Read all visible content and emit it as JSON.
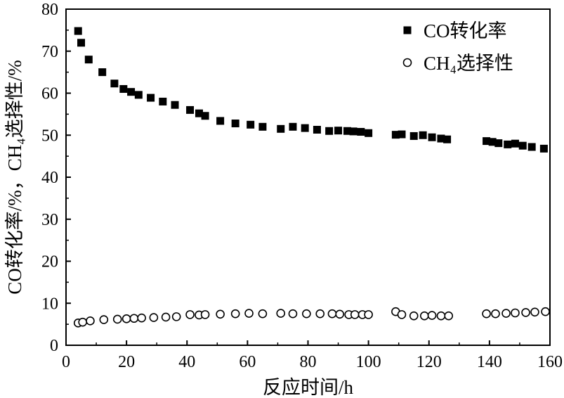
{
  "chart_data": {
    "type": "scatter",
    "xlabel": "反应时间/h",
    "ylabel": "CO转化率/%，CH₄选择性/%",
    "xlim": [
      0,
      160
    ],
    "ylim": [
      0,
      80
    ],
    "xticks": [
      0,
      20,
      40,
      60,
      80,
      100,
      120,
      140,
      160
    ],
    "yticks": [
      0,
      10,
      20,
      30,
      40,
      50,
      60,
      70,
      80
    ],
    "grid": false,
    "legend_position": "top-right",
    "series": [
      {
        "name": "CO转化率",
        "marker": "filled-square",
        "color": "#000000",
        "points": [
          [
            4,
            74.8
          ],
          [
            5,
            72
          ],
          [
            7.5,
            68
          ],
          [
            12,
            65
          ],
          [
            16,
            62.3
          ],
          [
            19,
            61
          ],
          [
            21.5,
            60.3
          ],
          [
            24,
            59.6
          ],
          [
            28,
            58.9
          ],
          [
            32,
            58
          ],
          [
            36,
            57.2
          ],
          [
            41,
            56
          ],
          [
            44,
            55.2
          ],
          [
            46,
            54.6
          ],
          [
            51,
            53.4
          ],
          [
            56,
            52.8
          ],
          [
            61,
            52.5
          ],
          [
            65,
            52
          ],
          [
            71,
            51.5
          ],
          [
            75,
            52
          ],
          [
            79,
            51.7
          ],
          [
            83,
            51.3
          ],
          [
            87,
            51
          ],
          [
            90,
            51.1
          ],
          [
            93,
            51
          ],
          [
            95,
            50.9
          ],
          [
            97.5,
            50.8
          ],
          [
            100,
            50.5
          ],
          [
            109,
            50.1
          ],
          [
            111,
            50.2
          ],
          [
            115,
            49.8
          ],
          [
            118,
            50
          ],
          [
            121,
            49.5
          ],
          [
            124,
            49.2
          ],
          [
            126,
            49
          ],
          [
            139,
            48.6
          ],
          [
            141,
            48.4
          ],
          [
            143,
            48.1
          ],
          [
            146,
            47.8
          ],
          [
            148.5,
            48
          ],
          [
            151,
            47.5
          ],
          [
            154,
            47.2
          ],
          [
            158,
            46.8
          ]
        ]
      },
      {
        "name": "CH₄选择性",
        "marker": "open-circle",
        "color": "#000000",
        "points": [
          [
            4,
            5.3
          ],
          [
            5.5,
            5.5
          ],
          [
            8,
            5.8
          ],
          [
            12.5,
            6.1
          ],
          [
            17,
            6.2
          ],
          [
            20,
            6.3
          ],
          [
            22.5,
            6.4
          ],
          [
            25,
            6.5
          ],
          [
            29,
            6.6
          ],
          [
            33,
            6.7
          ],
          [
            36.5,
            6.8
          ],
          [
            41,
            7.3
          ],
          [
            44,
            7.2
          ],
          [
            46,
            7.3
          ],
          [
            51,
            7.4
          ],
          [
            56,
            7.5
          ],
          [
            60.5,
            7.6
          ],
          [
            65,
            7.5
          ],
          [
            71,
            7.6
          ],
          [
            75,
            7.5
          ],
          [
            79.5,
            7.5
          ],
          [
            84,
            7.5
          ],
          [
            88,
            7.5
          ],
          [
            90.5,
            7.4
          ],
          [
            93.5,
            7.3
          ],
          [
            95.5,
            7.3
          ],
          [
            98,
            7.3
          ],
          [
            100,
            7.3
          ],
          [
            109,
            8
          ],
          [
            111,
            7.3
          ],
          [
            115,
            7
          ],
          [
            118.5,
            7
          ],
          [
            121,
            7.1
          ],
          [
            124,
            7
          ],
          [
            126.5,
            7
          ],
          [
            139,
            7.5
          ],
          [
            142,
            7.5
          ],
          [
            145.5,
            7.6
          ],
          [
            148.5,
            7.7
          ],
          [
            152,
            7.8
          ],
          [
            155,
            7.9
          ],
          [
            158.5,
            8
          ]
        ]
      }
    ]
  }
}
